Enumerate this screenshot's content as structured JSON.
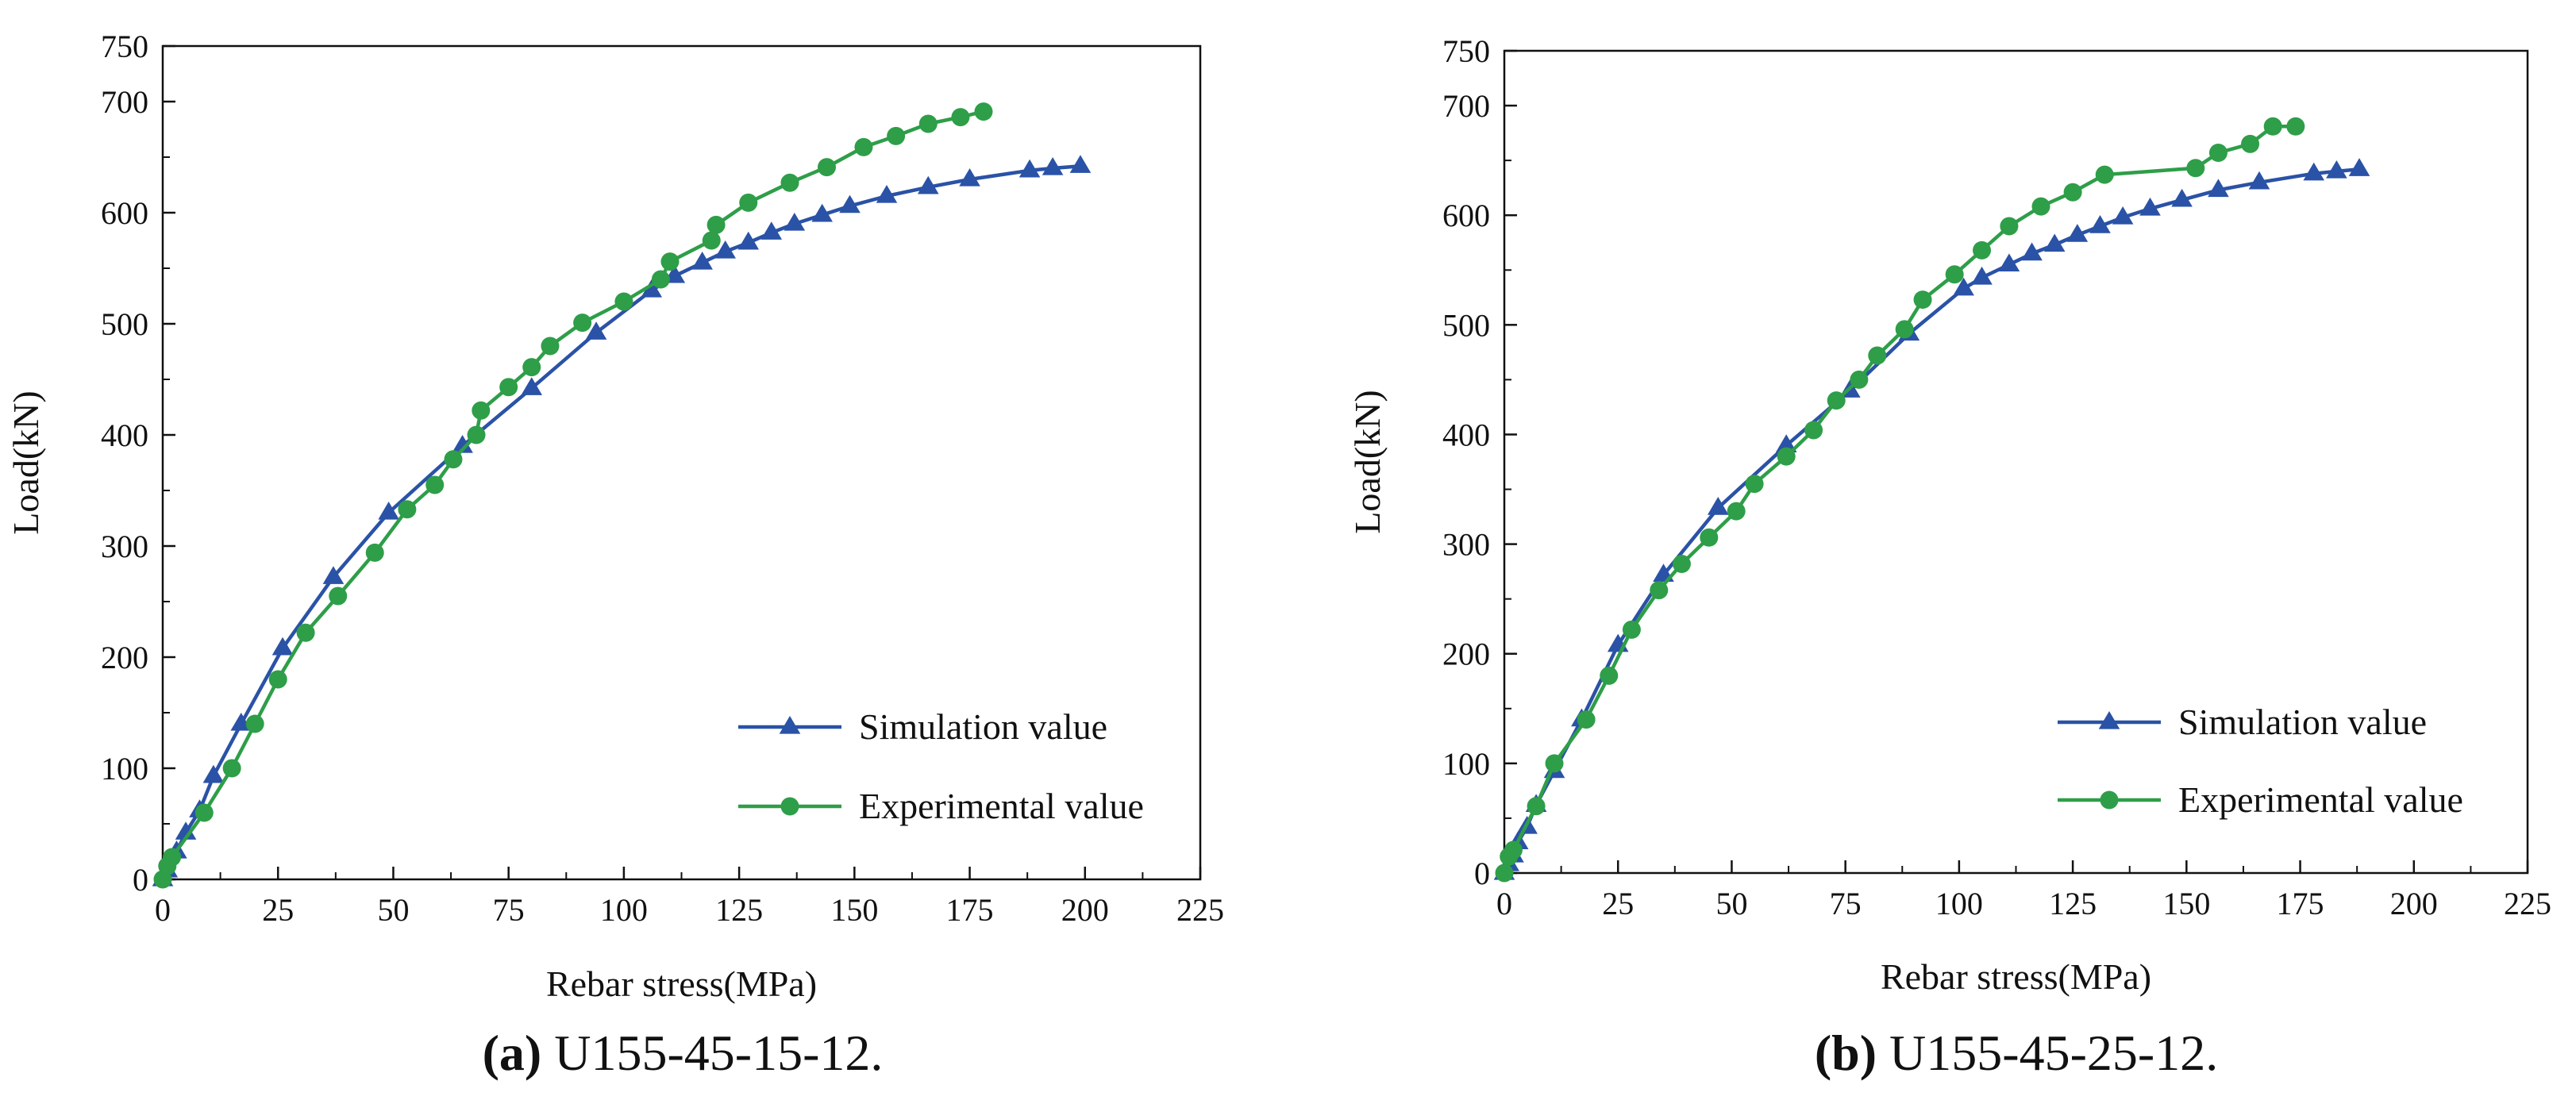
{
  "chart_data": [
    {
      "type": "line",
      "caption": {
        "letter": "(a)",
        "text": " U155-45-15-12."
      },
      "xlabel": "Rebar stress(MPa)",
      "ylabel": "Load(kN)",
      "xlim": [
        0,
        225
      ],
      "ylim": [
        0,
        750
      ],
      "xticks": [
        0,
        25,
        50,
        75,
        100,
        125,
        150,
        175,
        200,
        225
      ],
      "yticks": [
        0,
        100,
        200,
        300,
        400,
        500,
        600,
        700,
        750
      ],
      "legend_position": "lower-right",
      "series": [
        {
          "name": "Simulation value",
          "color": "#2a52a6",
          "marker": "triangle",
          "x": [
            0,
            1,
            3,
            5,
            8,
            11,
            17,
            26,
            37,
            49,
            65,
            80,
            94,
            106,
            111,
            117,
            122,
            127,
            132,
            137,
            143,
            149,
            157,
            166,
            175,
            188,
            193,
            199
          ],
          "y": [
            0,
            8,
            25,
            42,
            62,
            93,
            140,
            208,
            272,
            330,
            390,
            442,
            492,
            530,
            543,
            555,
            565,
            573,
            582,
            590,
            598,
            606,
            615,
            623,
            630,
            638,
            640,
            642
          ]
        },
        {
          "name": "Experimental value",
          "color": "#2e9e48",
          "marker": "circle",
          "x": [
            0,
            1,
            2,
            9,
            15,
            20,
            25,
            31,
            38,
            46,
            53,
            59,
            63,
            68,
            69,
            75,
            80,
            84,
            91,
            100,
            108,
            110,
            119,
            120,
            127,
            136,
            144,
            152,
            159,
            166,
            173,
            178
          ],
          "y": [
            0,
            12,
            20,
            60,
            100,
            140,
            180,
            222,
            255,
            294,
            333,
            355,
            378,
            400,
            422,
            443,
            461,
            480,
            501,
            520,
            540,
            556,
            575,
            589,
            609,
            627,
            641,
            659,
            669,
            680,
            686,
            691
          ]
        }
      ]
    },
    {
      "type": "line",
      "caption": {
        "letter": "(b)",
        "text": " U155-45-25-12."
      },
      "xlabel": "Rebar stress(MPa)",
      "ylabel": "Load(kN)",
      "xlim": [
        0,
        225
      ],
      "ylim": [
        0,
        750
      ],
      "xticks": [
        0,
        25,
        50,
        75,
        100,
        125,
        150,
        175,
        200,
        225
      ],
      "yticks": [
        0,
        100,
        200,
        300,
        400,
        500,
        600,
        700,
        750
      ],
      "legend_position": "lower-right",
      "series": [
        {
          "name": "Simulation value",
          "color": "#2a52a6",
          "marker": "triangle",
          "x": [
            0,
            1,
            2,
            3,
            5,
            7,
            11,
            17,
            25,
            35,
            47,
            62,
            76,
            89,
            101,
            105,
            111,
            116,
            121,
            126,
            131,
            136,
            142,
            149,
            157,
            166,
            178,
            183,
            188
          ],
          "y": [
            0,
            8,
            16,
            28,
            42,
            62,
            93,
            140,
            208,
            272,
            333,
            390,
            440,
            492,
            533,
            543,
            555,
            565,
            573,
            582,
            590,
            598,
            606,
            614,
            623,
            630,
            638,
            640,
            642
          ]
        },
        {
          "name": "Experimental value",
          "color": "#2e9e48",
          "marker": "circle",
          "x": [
            0,
            1,
            2,
            7,
            11,
            18,
            23,
            28,
            34,
            39,
            45,
            51,
            55,
            62,
            68,
            73,
            78,
            82,
            88,
            92,
            99,
            105,
            111,
            118,
            125,
            132,
            152,
            157,
            164,
            169,
            174
          ],
          "y": [
            0,
            15,
            21,
            61,
            100,
            140,
            180,
            222,
            258,
            282,
            306,
            330,
            355,
            380,
            404,
            431,
            450,
            472,
            496,
            523,
            546,
            568,
            590,
            608,
            621,
            637,
            643,
            657,
            665,
            681,
            681
          ]
        }
      ]
    }
  ]
}
